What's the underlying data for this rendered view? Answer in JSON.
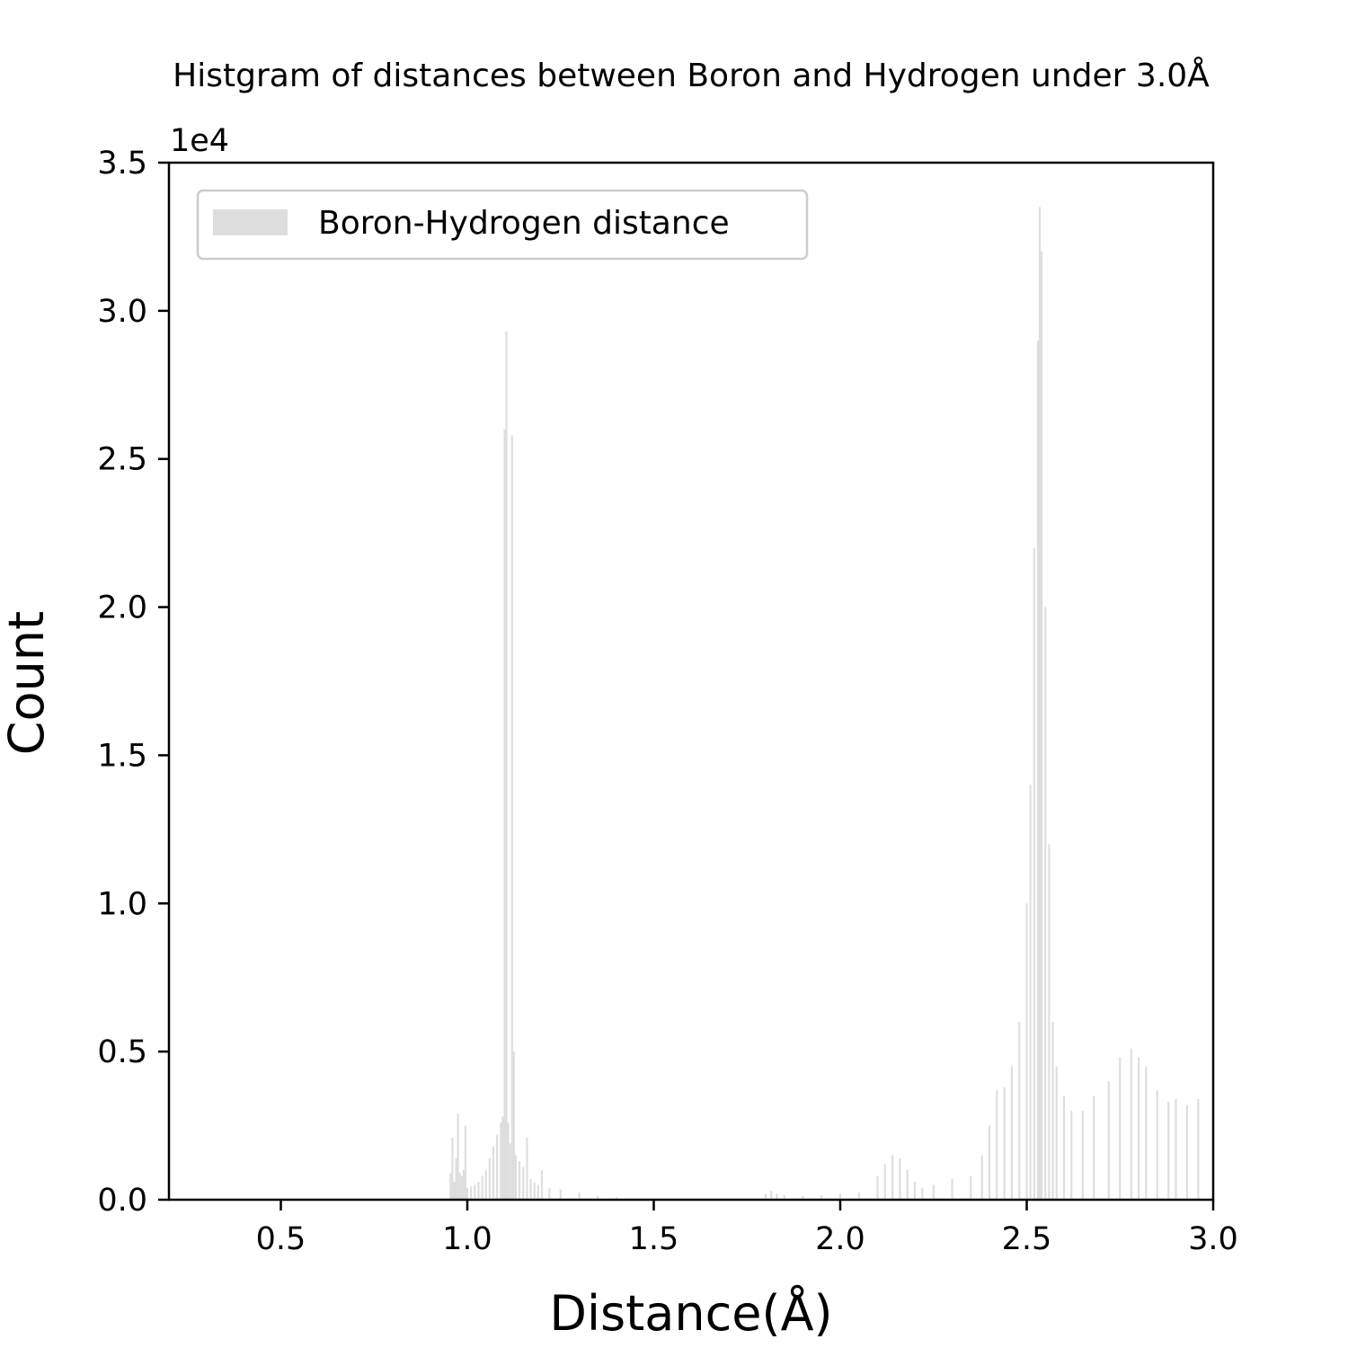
{
  "chart_data": {
    "type": "bar",
    "title": "Histgram of distances between Boron and Hydrogen under 3.0Å",
    "xlabel": "Distance(Å)",
    "ylabel": "Count",
    "y_offset_label": "1e4",
    "xlim": [
      0.2,
      3.0
    ],
    "ylim": [
      0,
      35000
    ],
    "x_ticks": [
      0.5,
      1.0,
      1.5,
      2.0,
      2.5,
      3.0
    ],
    "x_tick_labels": [
      "0.5",
      "1.0",
      "1.5",
      "2.0",
      "2.5",
      "3.0"
    ],
    "y_ticks": [
      0,
      5000,
      10000,
      15000,
      20000,
      25000,
      30000,
      35000
    ],
    "y_tick_labels": [
      "0.0",
      "0.5",
      "1.0",
      "1.5",
      "2.0",
      "2.5",
      "3.0",
      "3.5"
    ],
    "grid": false,
    "legend": {
      "position": "top-left",
      "entries": [
        "Boron-Hydrogen distance"
      ]
    },
    "bar_color": "#dddddd",
    "bin_width": 0.005,
    "series": [
      {
        "name": "Boron-Hydrogen distance",
        "points": [
          [
            0.94,
            50
          ],
          [
            0.955,
            900
          ],
          [
            0.96,
            2100
          ],
          [
            0.965,
            600
          ],
          [
            0.97,
            1400
          ],
          [
            0.975,
            2900
          ],
          [
            0.98,
            900
          ],
          [
            0.985,
            800
          ],
          [
            0.99,
            1000
          ],
          [
            0.995,
            2500
          ],
          [
            1.0,
            400
          ],
          [
            1.01,
            450
          ],
          [
            1.02,
            500
          ],
          [
            1.03,
            600
          ],
          [
            1.04,
            800
          ],
          [
            1.05,
            1000
          ],
          [
            1.06,
            1400
          ],
          [
            1.07,
            1800
          ],
          [
            1.08,
            2200
          ],
          [
            1.09,
            2600
          ],
          [
            1.095,
            2800
          ],
          [
            1.1,
            26000
          ],
          [
            1.105,
            29300
          ],
          [
            1.11,
            2600
          ],
          [
            1.115,
            1900
          ],
          [
            1.12,
            25800
          ],
          [
            1.125,
            5000
          ],
          [
            1.13,
            1500
          ],
          [
            1.14,
            1300
          ],
          [
            1.15,
            1100
          ],
          [
            1.16,
            2100
          ],
          [
            1.17,
            700
          ],
          [
            1.18,
            600
          ],
          [
            1.19,
            500
          ],
          [
            1.2,
            1000
          ],
          [
            1.22,
            400
          ],
          [
            1.25,
            350
          ],
          [
            1.3,
            250
          ],
          [
            1.35,
            120
          ],
          [
            1.4,
            80
          ],
          [
            1.45,
            50
          ],
          [
            1.5,
            20
          ],
          [
            1.8,
            200
          ],
          [
            1.815,
            300
          ],
          [
            1.83,
            200
          ],
          [
            1.85,
            150
          ],
          [
            1.9,
            120
          ],
          [
            1.95,
            150
          ],
          [
            2.0,
            200
          ],
          [
            2.05,
            250
          ],
          [
            2.1,
            800
          ],
          [
            2.12,
            1200
          ],
          [
            2.14,
            1500
          ],
          [
            2.16,
            1400
          ],
          [
            2.18,
            1000
          ],
          [
            2.2,
            600
          ],
          [
            2.22,
            400
          ],
          [
            2.25,
            500
          ],
          [
            2.3,
            700
          ],
          [
            2.35,
            800
          ],
          [
            2.38,
            1500
          ],
          [
            2.4,
            2500
          ],
          [
            2.42,
            3700
          ],
          [
            2.44,
            3800
          ],
          [
            2.46,
            4500
          ],
          [
            2.48,
            6000
          ],
          [
            2.5,
            10000
          ],
          [
            2.51,
            14000
          ],
          [
            2.52,
            22000
          ],
          [
            2.53,
            29000
          ],
          [
            2.535,
            33500
          ],
          [
            2.54,
            32000
          ],
          [
            2.55,
            20000
          ],
          [
            2.56,
            12000
          ],
          [
            2.57,
            6000
          ],
          [
            2.58,
            4500
          ],
          [
            2.6,
            3500
          ],
          [
            2.62,
            3000
          ],
          [
            2.65,
            3000
          ],
          [
            2.68,
            3500
          ],
          [
            2.72,
            4000
          ],
          [
            2.75,
            4800
          ],
          [
            2.78,
            5100
          ],
          [
            2.8,
            4800
          ],
          [
            2.82,
            4500
          ],
          [
            2.85,
            3700
          ],
          [
            2.88,
            3300
          ],
          [
            2.9,
            3400
          ],
          [
            2.93,
            3200
          ],
          [
            2.96,
            3400
          ],
          [
            3.0,
            3500
          ]
        ]
      }
    ]
  }
}
